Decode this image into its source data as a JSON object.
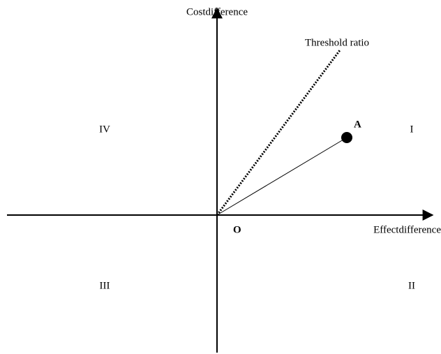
{
  "axes": {
    "y_label": "Costdifference",
    "x_label": "Effectdifference",
    "origin": "O"
  },
  "threshold": {
    "label": "Threshold ratio"
  },
  "point": {
    "label": "A"
  },
  "quadrants": {
    "q1": "I",
    "q2": "II",
    "q3": "III",
    "q4": "IV"
  }
}
